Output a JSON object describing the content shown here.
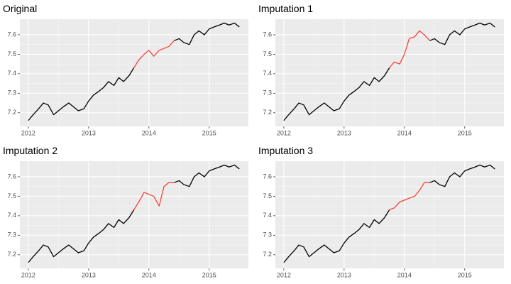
{
  "chart_data": [
    {
      "type": "line",
      "title": "Original",
      "x": [
        2012,
        2012.08,
        2012.17,
        2012.25,
        2012.33,
        2012.42,
        2012.5,
        2012.58,
        2012.67,
        2012.75,
        2012.83,
        2012.92,
        2013,
        2013.08,
        2013.17,
        2013.25,
        2013.33,
        2013.42,
        2013.5,
        2013.58,
        2013.67,
        2013.75,
        2013.83,
        2013.92,
        2014,
        2014.08,
        2014.17,
        2014.25,
        2014.33,
        2014.42,
        2014.5,
        2014.58,
        2014.67,
        2014.75,
        2014.83,
        2014.92,
        2015,
        2015.08,
        2015.17,
        2015.25,
        2015.33,
        2015.42,
        2015.5
      ],
      "series": [
        {
          "color": "#000000",
          "values": [
            7.16,
            7.19,
            7.22,
            7.25,
            7.24,
            7.19,
            7.21,
            7.23,
            7.25,
            7.23,
            7.21,
            7.22,
            7.26,
            7.29,
            7.31,
            7.33,
            7.36,
            7.34,
            7.38,
            7.36,
            7.39,
            7.43,
            null,
            null,
            null,
            null,
            null,
            null,
            null,
            7.57,
            7.58,
            7.56,
            7.55,
            7.6,
            7.62,
            7.6,
            7.63,
            7.64,
            7.65,
            7.66,
            7.65,
            7.66,
            7.64
          ]
        },
        {
          "color": "#f8433a",
          "values": [
            null,
            null,
            null,
            null,
            null,
            null,
            null,
            null,
            null,
            null,
            null,
            null,
            null,
            null,
            null,
            null,
            null,
            null,
            null,
            null,
            null,
            7.43,
            7.47,
            7.5,
            7.52,
            7.49,
            7.52,
            7.53,
            7.54,
            7.57,
            null,
            null,
            null,
            null,
            null,
            null,
            null,
            null,
            null,
            null,
            null,
            null,
            null
          ]
        }
      ],
      "xlim": [
        2011.86,
        2015.65
      ],
      "xticks": [
        2012,
        2013,
        2014,
        2015
      ],
      "ylim": [
        7.13,
        7.68
      ],
      "yticks": [
        7.2,
        7.3,
        7.4,
        7.5,
        7.6
      ],
      "grid": true
    },
    {
      "type": "line",
      "title": "Imputation 1",
      "x": [
        2012,
        2012.08,
        2012.17,
        2012.25,
        2012.33,
        2012.42,
        2012.5,
        2012.58,
        2012.67,
        2012.75,
        2012.83,
        2012.92,
        2013,
        2013.08,
        2013.17,
        2013.25,
        2013.33,
        2013.42,
        2013.5,
        2013.58,
        2013.67,
        2013.75,
        2013.83,
        2013.92,
        2014,
        2014.08,
        2014.17,
        2014.25,
        2014.33,
        2014.42,
        2014.5,
        2014.58,
        2014.67,
        2014.75,
        2014.83,
        2014.92,
        2015,
        2015.08,
        2015.17,
        2015.25,
        2015.33,
        2015.42,
        2015.5
      ],
      "series": [
        {
          "color": "#000000",
          "values": [
            7.16,
            7.19,
            7.22,
            7.25,
            7.24,
            7.19,
            7.21,
            7.23,
            7.25,
            7.23,
            7.21,
            7.22,
            7.26,
            7.29,
            7.31,
            7.33,
            7.36,
            7.34,
            7.38,
            7.36,
            7.39,
            7.43,
            null,
            null,
            null,
            null,
            null,
            null,
            null,
            7.57,
            7.58,
            7.56,
            7.55,
            7.6,
            7.62,
            7.6,
            7.63,
            7.64,
            7.65,
            7.66,
            7.65,
            7.66,
            7.64
          ]
        },
        {
          "color": "#f8433a",
          "values": [
            null,
            null,
            null,
            null,
            null,
            null,
            null,
            null,
            null,
            null,
            null,
            null,
            null,
            null,
            null,
            null,
            null,
            null,
            null,
            null,
            null,
            7.43,
            7.46,
            7.45,
            7.5,
            7.58,
            7.59,
            7.62,
            7.6,
            7.57,
            null,
            null,
            null,
            null,
            null,
            null,
            null,
            null,
            null,
            null,
            null,
            null,
            null
          ]
        }
      ],
      "xlim": [
        2011.86,
        2015.65
      ],
      "xticks": [
        2012,
        2013,
        2014,
        2015
      ],
      "ylim": [
        7.13,
        7.68
      ],
      "yticks": [
        7.2,
        7.3,
        7.4,
        7.5,
        7.6
      ],
      "grid": true
    },
    {
      "type": "line",
      "title": "Imputation 2",
      "x": [
        2012,
        2012.08,
        2012.17,
        2012.25,
        2012.33,
        2012.42,
        2012.5,
        2012.58,
        2012.67,
        2012.75,
        2012.83,
        2012.92,
        2013,
        2013.08,
        2013.17,
        2013.25,
        2013.33,
        2013.42,
        2013.5,
        2013.58,
        2013.67,
        2013.75,
        2013.83,
        2013.92,
        2014,
        2014.08,
        2014.17,
        2014.25,
        2014.33,
        2014.42,
        2014.5,
        2014.58,
        2014.67,
        2014.75,
        2014.83,
        2014.92,
        2015,
        2015.08,
        2015.17,
        2015.25,
        2015.33,
        2015.42,
        2015.5
      ],
      "series": [
        {
          "color": "#000000",
          "values": [
            7.16,
            7.19,
            7.22,
            7.25,
            7.24,
            7.19,
            7.21,
            7.23,
            7.25,
            7.23,
            7.21,
            7.22,
            7.26,
            7.29,
            7.31,
            7.33,
            7.36,
            7.34,
            7.38,
            7.36,
            7.39,
            7.43,
            null,
            null,
            null,
            null,
            null,
            null,
            null,
            7.57,
            7.58,
            7.56,
            7.55,
            7.6,
            7.62,
            7.6,
            7.63,
            7.64,
            7.65,
            7.66,
            7.65,
            7.66,
            7.64
          ]
        },
        {
          "color": "#f8433a",
          "values": [
            null,
            null,
            null,
            null,
            null,
            null,
            null,
            null,
            null,
            null,
            null,
            null,
            null,
            null,
            null,
            null,
            null,
            null,
            null,
            null,
            null,
            7.43,
            7.47,
            7.52,
            7.51,
            7.5,
            7.45,
            7.55,
            7.57,
            7.57,
            null,
            null,
            null,
            null,
            null,
            null,
            null,
            null,
            null,
            null,
            null,
            null,
            null
          ]
        }
      ],
      "xlim": [
        2011.86,
        2015.65
      ],
      "xticks": [
        2012,
        2013,
        2014,
        2015
      ],
      "ylim": [
        7.13,
        7.68
      ],
      "yticks": [
        7.2,
        7.3,
        7.4,
        7.5,
        7.6
      ],
      "grid": true
    },
    {
      "type": "line",
      "title": "Imputation 3",
      "x": [
        2012,
        2012.08,
        2012.17,
        2012.25,
        2012.33,
        2012.42,
        2012.5,
        2012.58,
        2012.67,
        2012.75,
        2012.83,
        2012.92,
        2013,
        2013.08,
        2013.17,
        2013.25,
        2013.33,
        2013.42,
        2013.5,
        2013.58,
        2013.67,
        2013.75,
        2013.83,
        2013.92,
        2014,
        2014.08,
        2014.17,
        2014.25,
        2014.33,
        2014.42,
        2014.5,
        2014.58,
        2014.67,
        2014.75,
        2014.83,
        2014.92,
        2015,
        2015.08,
        2015.17,
        2015.25,
        2015.33,
        2015.42,
        2015.5
      ],
      "series": [
        {
          "color": "#000000",
          "values": [
            7.16,
            7.19,
            7.22,
            7.25,
            7.24,
            7.19,
            7.21,
            7.23,
            7.25,
            7.23,
            7.21,
            7.22,
            7.26,
            7.29,
            7.31,
            7.33,
            7.36,
            7.34,
            7.38,
            7.36,
            7.39,
            7.43,
            null,
            null,
            null,
            null,
            null,
            null,
            null,
            7.57,
            7.58,
            7.56,
            7.55,
            7.6,
            7.62,
            7.6,
            7.63,
            7.64,
            7.65,
            7.66,
            7.65,
            7.66,
            7.64
          ]
        },
        {
          "color": "#f8433a",
          "values": [
            null,
            null,
            null,
            null,
            null,
            null,
            null,
            null,
            null,
            null,
            null,
            null,
            null,
            null,
            null,
            null,
            null,
            null,
            null,
            null,
            null,
            7.43,
            7.44,
            7.47,
            7.48,
            7.49,
            7.5,
            7.53,
            7.57,
            7.57,
            null,
            null,
            null,
            null,
            null,
            null,
            null,
            null,
            null,
            null,
            null,
            null,
            null
          ]
        }
      ],
      "xlim": [
        2011.86,
        2015.65
      ],
      "xticks": [
        2012,
        2013,
        2014,
        2015
      ],
      "ylim": [
        7.13,
        7.68
      ],
      "yticks": [
        7.2,
        7.3,
        7.4,
        7.5,
        7.6
      ],
      "grid": true
    }
  ]
}
